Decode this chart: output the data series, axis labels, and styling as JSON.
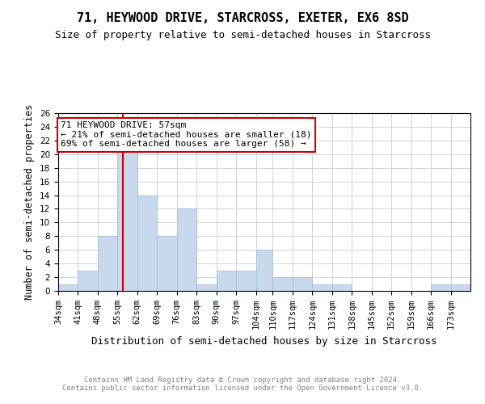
{
  "title": "71, HEYWOOD DRIVE, STARCROSS, EXETER, EX6 8SD",
  "subtitle": "Size of property relative to semi-detached houses in Starcross",
  "xlabel": "Distribution of semi-detached houses by size in Starcross",
  "ylabel": "Number of semi-detached properties",
  "footer_line1": "Contains HM Land Registry data © Crown copyright and database right 2024.",
  "footer_line2": "Contains public sector information licensed under the Open Government Licence v3.0.",
  "annotation_line1": "71 HEYWOOD DRIVE: 57sqm",
  "annotation_line2": "← 21% of semi-detached houses are smaller (18)",
  "annotation_line3": "69% of semi-detached houses are larger (58) →",
  "property_size": 57,
  "bar_color": "#c9d9ed",
  "bar_edgecolor": "#a0b8d8",
  "redline_color": "#cc0000",
  "categories": [
    "34sqm",
    "41sqm",
    "48sqm",
    "55sqm",
    "62sqm",
    "69sqm",
    "76sqm",
    "83sqm",
    "90sqm",
    "97sqm",
    "104sqm",
    "110sqm",
    "117sqm",
    "124sqm",
    "131sqm",
    "138sqm",
    "145sqm",
    "152sqm",
    "159sqm",
    "166sqm",
    "173sqm"
  ],
  "values": [
    1,
    3,
    8,
    22,
    14,
    8,
    12,
    1,
    3,
    3,
    6,
    2,
    2,
    1,
    1,
    0,
    0,
    0,
    0,
    1,
    1
  ],
  "bin_edges": [
    34,
    41,
    48,
    55,
    62,
    69,
    76,
    83,
    90,
    97,
    104,
    110,
    117,
    124,
    131,
    138,
    145,
    152,
    159,
    166,
    173,
    180
  ],
  "ylim": [
    0,
    26
  ],
  "yticks": [
    0,
    2,
    4,
    6,
    8,
    10,
    12,
    14,
    16,
    18,
    20,
    22,
    24,
    26
  ],
  "annotation_box_color": "white",
  "annotation_box_edgecolor": "#cc0000",
  "title_fontsize": 11,
  "subtitle_fontsize": 9,
  "axis_label_fontsize": 8.5,
  "tick_fontsize": 7.5,
  "annotation_fontsize": 8,
  "footer_fontsize": 6.5,
  "xlabel_fontsize": 9
}
